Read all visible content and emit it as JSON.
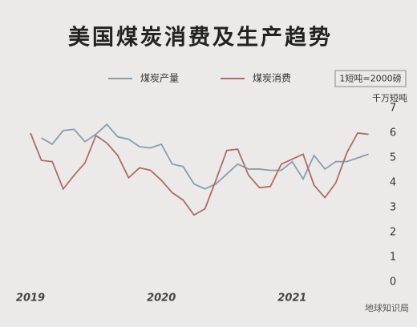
{
  "chart_data": {
    "type": "line",
    "title": "美国煤炭消费及生产趋势",
    "annotation": "1短吨=2000磅",
    "y_axis_label": "千万短吨",
    "source": "地球知识局",
    "categories": [
      "2019",
      null,
      null,
      null,
      null,
      null,
      null,
      null,
      null,
      null,
      null,
      null,
      "2020",
      null,
      null,
      null,
      null,
      null,
      null,
      null,
      null,
      null,
      null,
      null,
      "2021",
      null,
      null,
      null,
      null,
      null,
      null,
      null
    ],
    "series": [
      {
        "name": "煤炭产量",
        "color": "#8a9db0",
        "values": [
          null,
          5.8,
          5.55,
          6.1,
          6.15,
          5.65,
          5.95,
          6.35,
          5.85,
          5.75,
          5.45,
          5.4,
          5.55,
          4.75,
          4.65,
          3.95,
          3.75,
          3.95,
          4.35,
          4.75,
          4.55,
          4.55,
          4.5,
          4.5,
          4.85,
          4.15,
          5.1,
          4.55,
          4.85,
          4.85,
          5.0,
          5.15
        ]
      },
      {
        "name": "煤炭消费",
        "color": "#b06a6a",
        "values": [
          6.0,
          4.9,
          4.85,
          3.75,
          4.3,
          4.8,
          5.9,
          5.6,
          5.1,
          4.2,
          4.6,
          4.5,
          4.1,
          3.6,
          3.3,
          2.7,
          2.95,
          4.1,
          5.3,
          5.35,
          4.3,
          3.8,
          3.85,
          4.75,
          4.95,
          5.15,
          3.9,
          3.4,
          4.0,
          5.2,
          6.0,
          5.95
        ]
      }
    ],
    "ylim": [
      0,
      7
    ],
    "yticks": [
      0,
      1,
      2,
      3,
      4,
      5,
      6,
      7
    ],
    "grid": false
  }
}
